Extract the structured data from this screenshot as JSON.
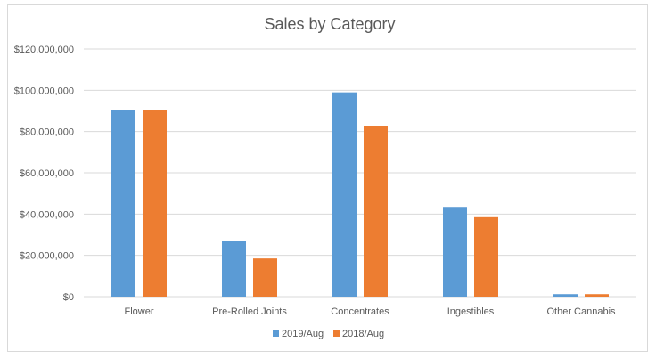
{
  "chart_data": {
    "type": "bar",
    "title": "Sales by Category",
    "xlabel": "",
    "ylabel": "",
    "categories": [
      "Flower",
      "Pre-Rolled Joints",
      "Concentrates",
      "Ingestibles",
      "Other Cannabis"
    ],
    "series": [
      {
        "name": "2019/Aug",
        "color": "#5B9BD5",
        "values": [
          90500000,
          27000000,
          99000000,
          43500000,
          1200000
        ]
      },
      {
        "name": "2018/Aug",
        "color": "#ED7D31",
        "values": [
          90500000,
          18500000,
          82500000,
          38500000,
          1200000
        ]
      }
    ],
    "ylim": [
      0,
      120000000
    ],
    "yticks": [
      0,
      20000000,
      40000000,
      60000000,
      80000000,
      100000000,
      120000000
    ],
    "ytick_labels": [
      "$0",
      "$20,000,000",
      "$40,000,000",
      "$60,000,000",
      "$80,000,000",
      "$100,000,000",
      "$120,000,000"
    ],
    "grid": true,
    "legend_position": "bottom"
  }
}
